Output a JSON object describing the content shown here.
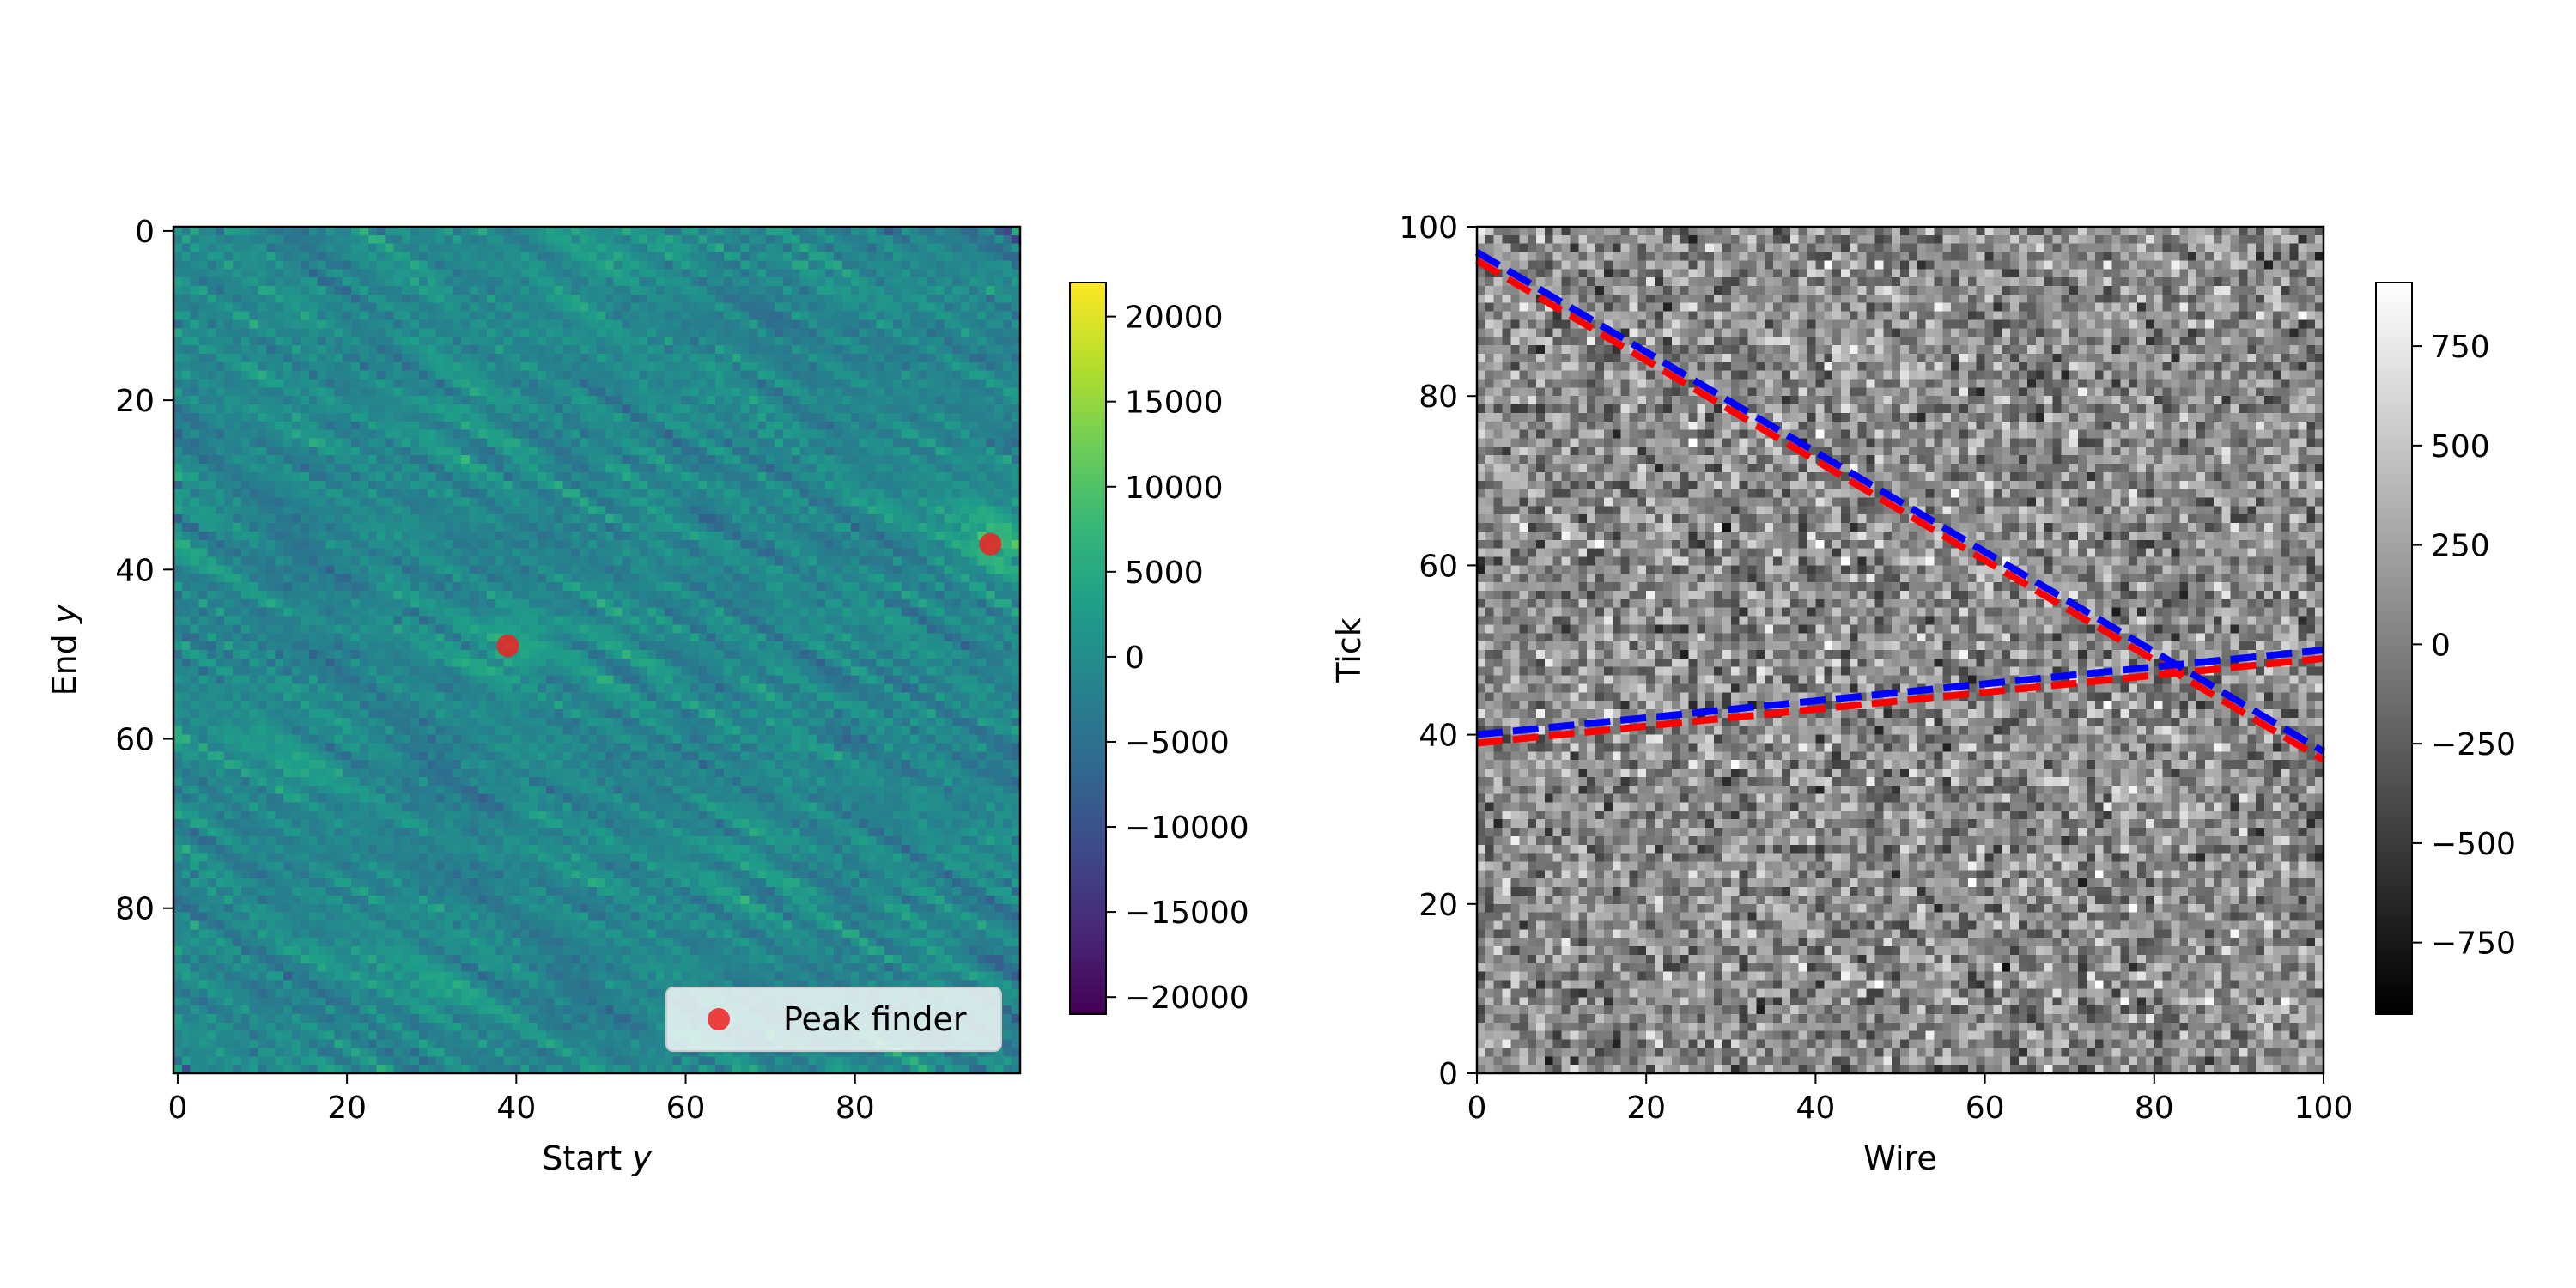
{
  "chart_data": [
    {
      "type": "heatmap",
      "title": "",
      "xlabel": "Start",
      "xlabel_var": "y",
      "ylabel": "End",
      "ylabel_var": "y",
      "xlim": [
        0,
        99
      ],
      "ylim": [
        99,
        0
      ],
      "y_inverted": true,
      "xticks": [
        0,
        20,
        40,
        60,
        80
      ],
      "xtick_labels": [
        "0",
        "20",
        "40",
        "60",
        "80"
      ],
      "yticks": [
        0,
        20,
        40,
        60,
        80
      ],
      "ytick_labels": [
        "0",
        "20",
        "40",
        "60",
        "80"
      ],
      "colormap": "viridis",
      "grid_size": [
        100,
        100
      ],
      "colorbar": {
        "range": [
          -21000,
          22000
        ],
        "ticks": [
          20000,
          15000,
          10000,
          5000,
          0,
          -5000,
          -10000,
          -15000,
          -20000
        ],
        "tick_labels": [
          "20000",
          "15000",
          "10000",
          "5000",
          "0",
          "−5000",
          "−10000",
          "−15000",
          "−20000"
        ]
      },
      "series": [
        {
          "name": "Peak finder",
          "kind": "scatter",
          "color": "#ee2222",
          "points": [
            {
              "x": 39,
              "y": 49
            },
            {
              "x": 96,
              "y": 37
            }
          ]
        }
      ],
      "legend": {
        "position": "lower-right",
        "entries": [
          "Peak finder"
        ]
      }
    },
    {
      "type": "heatmap",
      "title": "",
      "xlabel": "Wire",
      "ylabel": "Tick",
      "xlim": [
        0,
        100
      ],
      "ylim": [
        0,
        100
      ],
      "xticks": [
        0,
        20,
        40,
        60,
        80,
        100
      ],
      "xtick_labels": [
        "0",
        "20",
        "40",
        "60",
        "80",
        "100"
      ],
      "yticks": [
        0,
        20,
        40,
        60,
        80,
        100
      ],
      "ytick_labels": [
        "0",
        "20",
        "40",
        "60",
        "80",
        "100"
      ],
      "colormap": "gray",
      "grid_size": [
        100,
        100
      ],
      "colorbar": {
        "range": [
          -930,
          910
        ],
        "ticks": [
          750,
          500,
          250,
          0,
          -250,
          -500,
          -750
        ],
        "tick_labels": [
          "750",
          "500",
          "250",
          "0",
          "−250",
          "−500",
          "−750"
        ]
      },
      "lines": [
        {
          "color": "#ff0000",
          "style": "dashed",
          "x": [
            0,
            100
          ],
          "y": [
            96,
            37
          ]
        },
        {
          "color": "#ff0000",
          "style": "dashed",
          "x": [
            0,
            100
          ],
          "y": [
            39,
            49
          ]
        },
        {
          "color": "#0000ff",
          "style": "dashed",
          "x": [
            0,
            100
          ],
          "y": [
            97,
            38
          ]
        },
        {
          "color": "#0000ff",
          "style": "dashed",
          "x": [
            0,
            100
          ],
          "y": [
            40,
            50
          ]
        }
      ]
    }
  ]
}
